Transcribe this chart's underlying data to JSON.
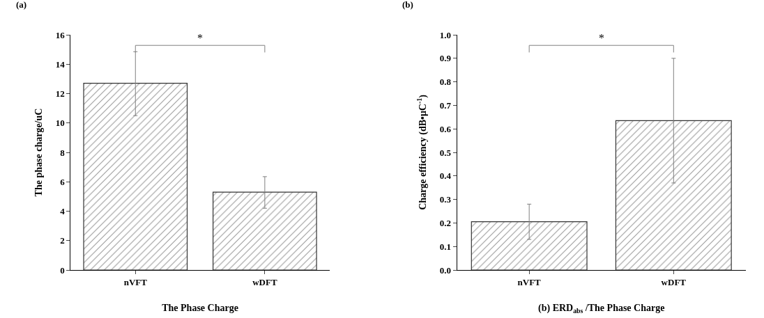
{
  "chart_data": [
    {
      "type": "bar",
      "categories": [
        "nVFT",
        "wDFT"
      ],
      "values": [
        12.7,
        5.3
      ],
      "errors": [
        [
          10.5,
          14.85
        ],
        [
          4.2,
          6.35
        ]
      ],
      "color": "#333333",
      "xlabel": "The Phase Charge",
      "ylabel": "The phase charge/uC",
      "ylim": [
        0,
        16
      ],
      "yticks": [
        0,
        2,
        4,
        6,
        8,
        10,
        12,
        14,
        16
      ],
      "annotations": [
        "(a)",
        "*"
      ]
    },
    {
      "type": "bar",
      "categories": [
        "nVFT",
        "wDFT"
      ],
      "values": [
        0.205,
        0.635
      ],
      "errors": [
        [
          0.13,
          0.28
        ],
        [
          0.37,
          0.9
        ]
      ],
      "color": "#333333",
      "xlabel": "(b) ERD$_{abs}$ /The Phase Charge",
      "ylabel": "Charge efficiency (dB•μC$^{-1}$)",
      "ylim": [
        0,
        1.0
      ],
      "yticks": [
        {
          "value": 0,
          "label": "0.0"
        },
        0.1,
        0.2,
        0.3,
        0.4,
        0.5,
        0.6,
        0.7,
        0.8,
        0.9,
        {
          "value": 1.0,
          "label": "1.0"
        }
      ],
      "annotations": [
        "(b)",
        "*"
      ]
    }
  ]
}
